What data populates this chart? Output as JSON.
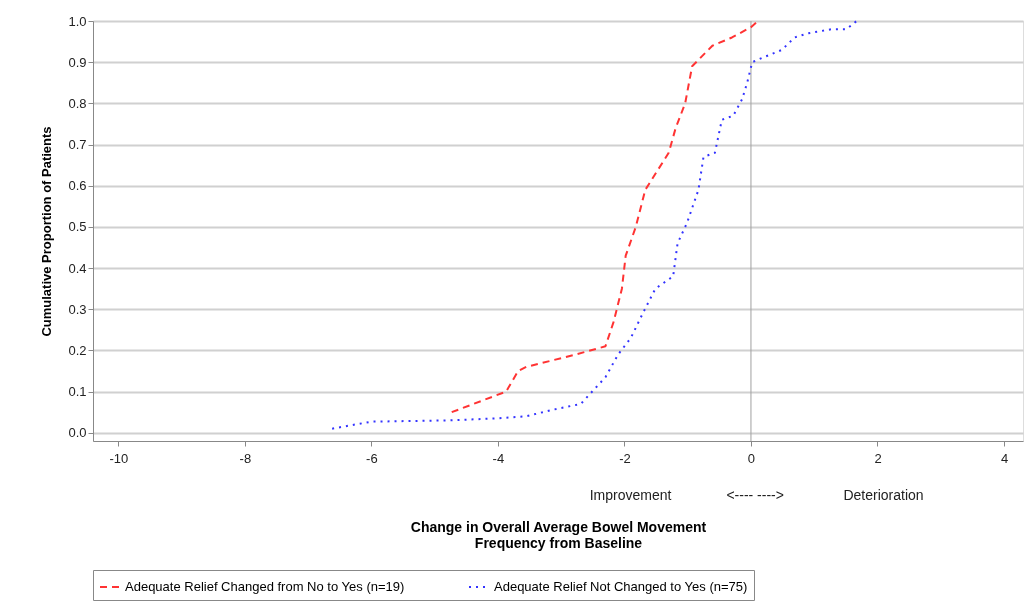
{
  "chart_data": {
    "type": "line",
    "xlabel": "Change in Overall Average Bowel Movement\nFrequency from Baseline",
    "ylabel": "Cumulative Proportion of Patients",
    "xlim": [
      -10.4,
      4.3
    ],
    "xticks": [
      -10,
      -8,
      -6,
      -4,
      -2,
      0,
      2,
      4
    ],
    "ylim": [
      -0.02,
      1.0
    ],
    "yticks": [
      {
        "value": 0,
        "label": "0.0"
      },
      0.1,
      0.2,
      0.3,
      0.4,
      0.5,
      0.6,
      0.7,
      0.8,
      0.9,
      {
        "value": 1,
        "label": "1.0"
      }
    ],
    "grid": "y",
    "legend": "bottom",
    "marker": "none",
    "ref_lines": [
      {
        "axis": "x",
        "value": 0,
        "color": "#a0a0a0"
      }
    ],
    "annotations": [
      "Improvement",
      "<----   ---->",
      "Deterioration"
    ],
    "series": [
      {
        "name": "Adequate Relief Changed from No to Yes (n=19)",
        "color": "#ff3333",
        "line_style": "dashed",
        "x": [
          -4.73,
          -3.87,
          -3.68,
          -3.55,
          -2.77,
          -2.3,
          -2.17,
          -2.04,
          -1.98,
          -1.82,
          -1.67,
          -1.3,
          -1.19,
          -1.04,
          -0.93,
          -0.61,
          -0.3,
          0.0,
          0.11
        ],
        "values": [
          0.05,
          0.1,
          0.15,
          0.16,
          0.19,
          0.21,
          0.27,
          0.35,
          0.43,
          0.5,
          0.59,
          0.68,
          0.74,
          0.8,
          0.89,
          0.94,
          0.96,
          0.985,
          1.0
        ]
      },
      {
        "name": "Adequate Relief Not Changed to Yes (n=75)",
        "color": "#3333ff",
        "line_style": "dotted",
        "x": [
          -6.62,
          -6.0,
          -4.8,
          -4.0,
          -3.55,
          -3.16,
          -2.69,
          -2.45,
          -2.3,
          -2.1,
          -1.9,
          -1.71,
          -1.51,
          -1.23,
          -1.16,
          -1.01,
          -0.83,
          -0.75,
          -0.57,
          -0.46,
          -0.28,
          -0.14,
          -0.06,
          0.02,
          0.17,
          0.33,
          0.49,
          0.69,
          0.9,
          1.27,
          1.51,
          1.67
        ],
        "values": [
          0.01,
          0.027,
          0.03,
          0.035,
          0.04,
          0.055,
          0.07,
          0.11,
          0.135,
          0.19,
          0.23,
          0.29,
          0.35,
          0.38,
          0.46,
          0.51,
          0.59,
          0.67,
          0.68,
          0.76,
          0.77,
          0.81,
          0.85,
          0.9,
          0.91,
          0.92,
          0.93,
          0.96,
          0.97,
          0.98,
          0.98,
          1.0
        ]
      }
    ]
  }
}
